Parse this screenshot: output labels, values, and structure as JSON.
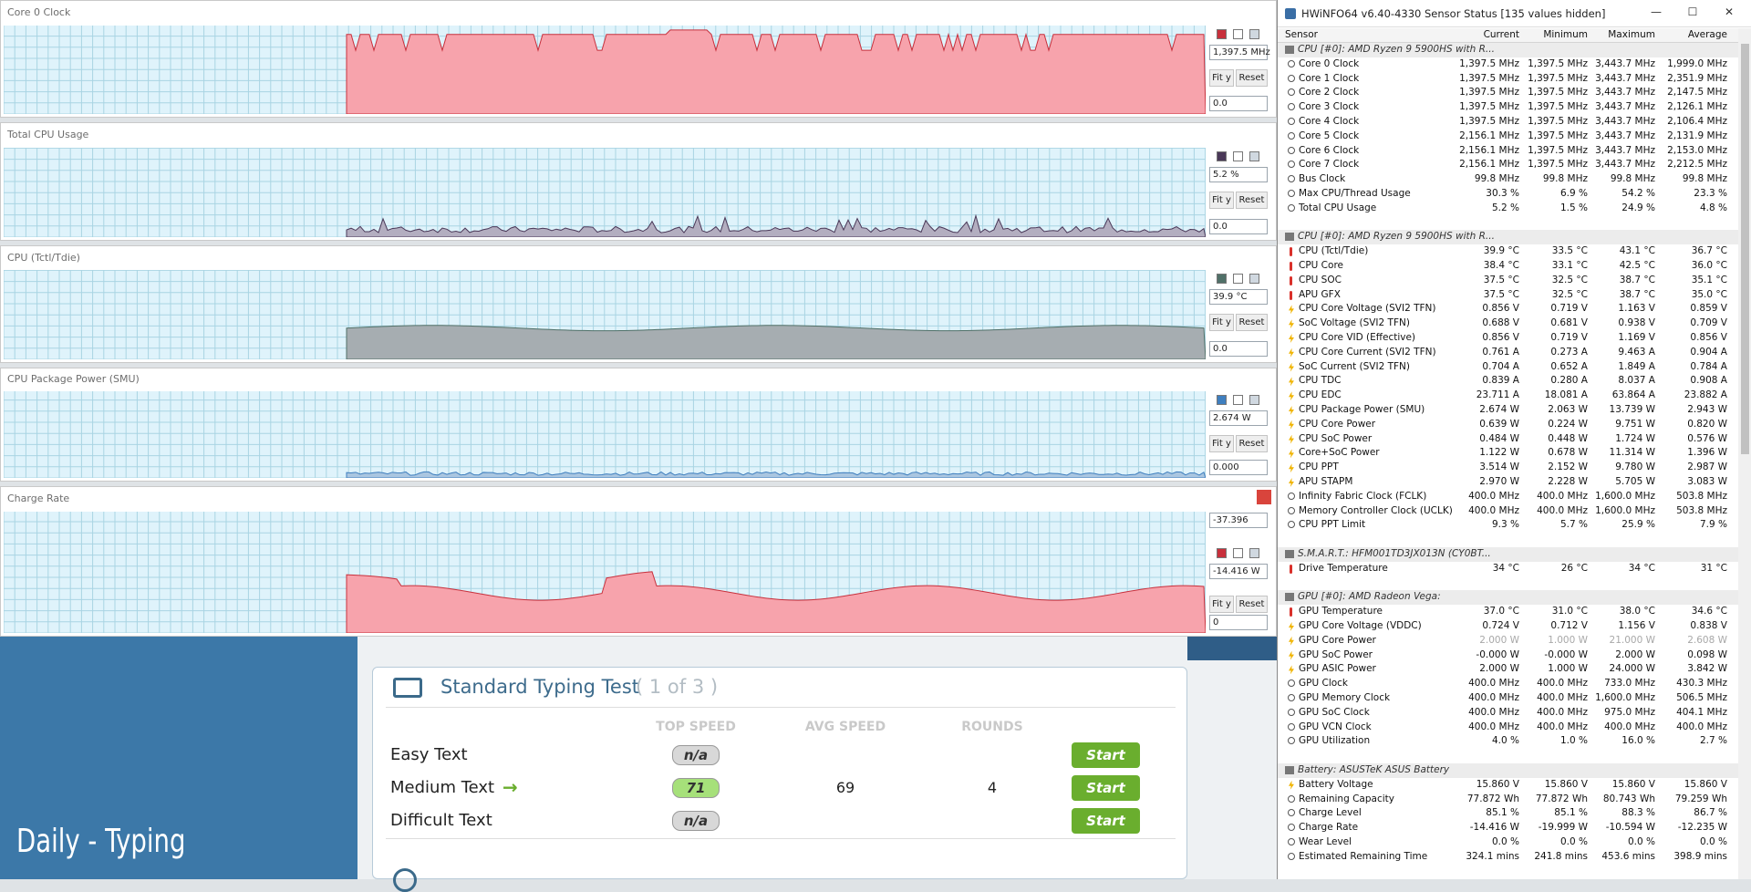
{
  "graphs": [
    {
      "title": "Core 0 Clock",
      "top_value": "1,397.5 MHz",
      "bottom_value": "0.0",
      "color": "#f7a3ac",
      "stroke": "#c8303c"
    },
    {
      "title": "Total CPU Usage",
      "top_value": "5.2 %",
      "bottom_value": "0.0",
      "color": "#b3aec0",
      "stroke": "#4a3858"
    },
    {
      "title": "CPU (Tctl/Tdie)",
      "top_value": "39.9 °C",
      "bottom_value": "0.0",
      "color": "#a6adb1",
      "stroke": "#507068"
    },
    {
      "title": "CPU Package Power (SMU)",
      "top_value": "2.674 W",
      "bottom_value": "0.000",
      "color": "#aac6e0",
      "stroke": "#3f7fbf"
    },
    {
      "title": "Charge Rate",
      "max_value": "-37.396",
      "top_value": "-14.416 W",
      "bottom_value": "0",
      "color": "#f7a3ac",
      "stroke": "#c8303c"
    }
  ],
  "graph_buttons": {
    "fit": "Fit y",
    "reset": "Reset"
  },
  "hwinfo": {
    "title": "HWiNFO64 v6.40-4330 Sensor Status [135 values hidden]",
    "columns": [
      "Sensor",
      "Current",
      "Minimum",
      "Maximum",
      "Average"
    ],
    "sections": [
      {
        "title": "CPU [#0]: AMD Ryzen 9 5900HS with R...",
        "rows": [
          {
            "icon": "clock",
            "cells": [
              "Core 0 Clock",
              "1,397.5 MHz",
              "1,397.5 MHz",
              "3,443.7 MHz",
              "1,999.0 MHz"
            ]
          },
          {
            "icon": "clock",
            "cells": [
              "Core 1 Clock",
              "1,397.5 MHz",
              "1,397.5 MHz",
              "3,443.7 MHz",
              "2,351.9 MHz"
            ]
          },
          {
            "icon": "clock",
            "cells": [
              "Core 2 Clock",
              "1,397.5 MHz",
              "1,397.5 MHz",
              "3,443.7 MHz",
              "2,147.5 MHz"
            ]
          },
          {
            "icon": "clock",
            "cells": [
              "Core 3 Clock",
              "1,397.5 MHz",
              "1,397.5 MHz",
              "3,443.7 MHz",
              "2,126.1 MHz"
            ]
          },
          {
            "icon": "clock",
            "cells": [
              "Core 4 Clock",
              "1,397.5 MHz",
              "1,397.5 MHz",
              "3,443.7 MHz",
              "2,106.4 MHz"
            ]
          },
          {
            "icon": "clock",
            "cells": [
              "Core 5 Clock",
              "2,156.1 MHz",
              "1,397.5 MHz",
              "3,443.7 MHz",
              "2,131.9 MHz"
            ]
          },
          {
            "icon": "clock",
            "cells": [
              "Core 6 Clock",
              "2,156.1 MHz",
              "1,397.5 MHz",
              "3,443.7 MHz",
              "2,153.0 MHz"
            ]
          },
          {
            "icon": "clock",
            "cells": [
              "Core 7 Clock",
              "2,156.1 MHz",
              "1,397.5 MHz",
              "3,443.7 MHz",
              "2,212.5 MHz"
            ]
          },
          {
            "icon": "clock",
            "cells": [
              "Bus Clock",
              "99.8 MHz",
              "99.8 MHz",
              "99.8 MHz",
              "99.8 MHz"
            ]
          },
          {
            "icon": "clock",
            "cells": [
              "Max CPU/Thread Usage",
              "30.3 %",
              "6.9 %",
              "54.2 %",
              "23.3 %"
            ]
          },
          {
            "icon": "clock",
            "cells": [
              "Total CPU Usage",
              "5.2 %",
              "1.5 %",
              "24.9 %",
              "4.8 %"
            ]
          }
        ]
      },
      {
        "title": "CPU [#0]: AMD Ryzen 9 5900HS with R...",
        "rows": [
          {
            "icon": "temp",
            "cells": [
              "CPU (Tctl/Tdie)",
              "39.9 °C",
              "33.5 °C",
              "43.1 °C",
              "36.7 °C"
            ]
          },
          {
            "icon": "temp",
            "cells": [
              "CPU Core",
              "38.4 °C",
              "33.1 °C",
              "42.5 °C",
              "36.0 °C"
            ]
          },
          {
            "icon": "temp",
            "cells": [
              "CPU SOC",
              "37.5 °C",
              "32.5 °C",
              "38.7 °C",
              "35.1 °C"
            ]
          },
          {
            "icon": "temp",
            "cells": [
              "APU GFX",
              "37.5 °C",
              "32.5 °C",
              "38.7 °C",
              "35.0 °C"
            ]
          },
          {
            "icon": "power",
            "cells": [
              "CPU Core Voltage (SVI2 TFN)",
              "0.856 V",
              "0.719 V",
              "1.163 V",
              "0.859 V"
            ]
          },
          {
            "icon": "power",
            "cells": [
              "SoC Voltage (SVI2 TFN)",
              "0.688 V",
              "0.681 V",
              "0.938 V",
              "0.709 V"
            ]
          },
          {
            "icon": "power",
            "cells": [
              "CPU Core VID (Effective)",
              "0.856 V",
              "0.719 V",
              "1.169 V",
              "0.856 V"
            ]
          },
          {
            "icon": "power",
            "cells": [
              "CPU Core Current (SVI2 TFN)",
              "0.761 A",
              "0.273 A",
              "9.463 A",
              "0.904 A"
            ]
          },
          {
            "icon": "power",
            "cells": [
              "SoC Current (SVI2 TFN)",
              "0.704 A",
              "0.652 A",
              "1.849 A",
              "0.784 A"
            ]
          },
          {
            "icon": "power",
            "cells": [
              "CPU TDC",
              "0.839 A",
              "0.280 A",
              "8.037 A",
              "0.908 A"
            ]
          },
          {
            "icon": "power",
            "cells": [
              "CPU EDC",
              "23.711 A",
              "18.081 A",
              "63.864 A",
              "23.882 A"
            ]
          },
          {
            "icon": "power",
            "cells": [
              "CPU Package Power (SMU)",
              "2.674 W",
              "2.063 W",
              "13.739 W",
              "2.943 W"
            ]
          },
          {
            "icon": "power",
            "cells": [
              "CPU Core Power",
              "0.639 W",
              "0.224 W",
              "9.751 W",
              "0.820 W"
            ]
          },
          {
            "icon": "power",
            "cells": [
              "CPU SoC Power",
              "0.484 W",
              "0.448 W",
              "1.724 W",
              "0.576 W"
            ]
          },
          {
            "icon": "power",
            "cells": [
              "Core+SoC Power",
              "1.122 W",
              "0.678 W",
              "11.314 W",
              "1.396 W"
            ]
          },
          {
            "icon": "power",
            "cells": [
              "CPU PPT",
              "3.514 W",
              "2.152 W",
              "9.780 W",
              "2.987 W"
            ]
          },
          {
            "icon": "power",
            "cells": [
              "APU STAPM",
              "2.970 W",
              "2.228 W",
              "5.705 W",
              "3.083 W"
            ]
          },
          {
            "icon": "clock",
            "cells": [
              "Infinity Fabric Clock (FCLK)",
              "400.0 MHz",
              "400.0 MHz",
              "1,600.0 MHz",
              "503.8 MHz"
            ]
          },
          {
            "icon": "clock",
            "cells": [
              "Memory Controller Clock (UCLK)",
              "400.0 MHz",
              "400.0 MHz",
              "1,600.0 MHz",
              "503.8 MHz"
            ]
          },
          {
            "icon": "clock",
            "cells": [
              "CPU PPT Limit",
              "9.3 %",
              "5.7 %",
              "25.9 %",
              "7.9 %"
            ]
          }
        ]
      },
      {
        "title": "S.M.A.R.T.: HFM001TD3JX013N (CY0BT...",
        "rows": [
          {
            "icon": "temp",
            "cells": [
              "Drive Temperature",
              "34 °C",
              "26 °C",
              "34 °C",
              "31 °C"
            ]
          }
        ]
      },
      {
        "title": "GPU [#0]: AMD Radeon Vega:",
        "rows": [
          {
            "icon": "temp",
            "cells": [
              "GPU Temperature",
              "37.0 °C",
              "31.0 °C",
              "38.0 °C",
              "34.6 °C"
            ]
          },
          {
            "icon": "power",
            "cells": [
              "GPU Core Voltage (VDDC)",
              "0.724 V",
              "0.712 V",
              "1.156 V",
              "0.838 V"
            ]
          },
          {
            "icon": "power",
            "dimmed": true,
            "cells": [
              "GPU Core Power",
              "2.000 W",
              "1.000 W",
              "21.000 W",
              "2.608 W"
            ]
          },
          {
            "icon": "power",
            "cells": [
              "GPU SoC Power",
              "-0.000 W",
              "-0.000 W",
              "2.000 W",
              "0.098 W"
            ]
          },
          {
            "icon": "power",
            "cells": [
              "GPU ASIC Power",
              "2.000 W",
              "1.000 W",
              "24.000 W",
              "3.842 W"
            ]
          },
          {
            "icon": "clock",
            "cells": [
              "GPU Clock",
              "400.0 MHz",
              "400.0 MHz",
              "733.0 MHz",
              "430.3 MHz"
            ]
          },
          {
            "icon": "clock",
            "cells": [
              "GPU Memory Clock",
              "400.0 MHz",
              "400.0 MHz",
              "1,600.0 MHz",
              "506.5 MHz"
            ]
          },
          {
            "icon": "clock",
            "cells": [
              "GPU SoC Clock",
              "400.0 MHz",
              "400.0 MHz",
              "975.0 MHz",
              "404.1 MHz"
            ]
          },
          {
            "icon": "clock",
            "cells": [
              "GPU VCN Clock",
              "400.0 MHz",
              "400.0 MHz",
              "400.0 MHz",
              "400.0 MHz"
            ]
          },
          {
            "icon": "clock",
            "cells": [
              "GPU Utilization",
              "4.0 %",
              "1.0 %",
              "16.0 %",
              "2.7 %"
            ]
          }
        ]
      },
      {
        "title": "Battery: ASUSTeK ASUS Battery",
        "rows": [
          {
            "icon": "power",
            "cells": [
              "Battery Voltage",
              "15.860 V",
              "15.860 V",
              "15.860 V",
              "15.860 V"
            ]
          },
          {
            "icon": "clock",
            "cells": [
              "Remaining Capacity",
              "77.872 Wh",
              "77.872 Wh",
              "80.743 Wh",
              "79.259 Wh"
            ]
          },
          {
            "icon": "clock",
            "cells": [
              "Charge Level",
              "85.1 %",
              "85.1 %",
              "88.3 %",
              "86.7 %"
            ]
          },
          {
            "icon": "clock",
            "cells": [
              "Charge Rate",
              "-14.416 W",
              "-19.999 W",
              "-10.594 W",
              "-12.235 W"
            ]
          },
          {
            "icon": "clock",
            "cells": [
              "Wear Level",
              "0.0 %",
              "0.0 %",
              "0.0 %",
              "0.0 %"
            ]
          },
          {
            "icon": "clock",
            "cells": [
              "Estimated Remaining Time",
              "324.1 mins",
              "241.8 mins",
              "453.6 mins",
              "398.9 mins"
            ]
          }
        ]
      }
    ]
  },
  "typing": {
    "title": "Standard Typing Test",
    "progress": "( 1 of 3 )",
    "headers": [
      "TOP SPEED",
      "AVG SPEED",
      "ROUNDS"
    ],
    "rows": [
      {
        "label": "Easy Text",
        "top": "n/a",
        "button": "Start"
      },
      {
        "label": "Medium Text",
        "top": "71",
        "avg": "69",
        "rounds": "4",
        "button": "Start"
      },
      {
        "label": "Difficult Text",
        "top": "n/a",
        "button": "Start"
      }
    ],
    "sidebar": "Daily - Typing"
  }
}
